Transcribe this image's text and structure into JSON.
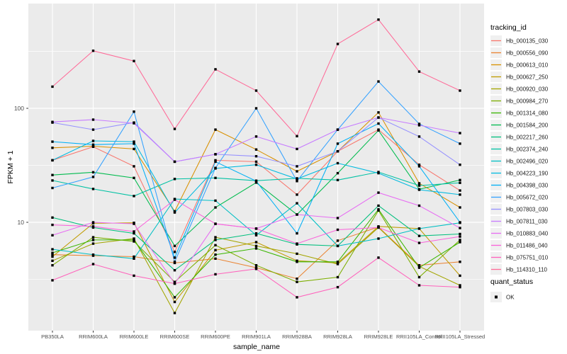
{
  "figure": {
    "background": "#FFFFFF",
    "panel_background": "#EBEBEB",
    "grid_color": "#FFFFFF",
    "marker_color": "#000000",
    "axis_text_color": "#4D4D4D"
  },
  "axes": {
    "x_title": "sample_name",
    "y_title": "FPKM + 1",
    "y_tick_labels": [
      "100",
      "10"
    ]
  },
  "legend": {
    "tracking_title": "tracking_id",
    "quant_title": "quant_status",
    "quant_items": [
      {
        "label": "OK",
        "marker": "black-square-icon"
      }
    ]
  },
  "chart_data": {
    "type": "line",
    "title": "",
    "xlabel": "sample_name",
    "ylabel": "FPKM + 1",
    "y_scale": "log10",
    "ylim": [
      1.12,
      830
    ],
    "y_major_ticks": [
      100,
      10
    ],
    "y_minor_gridlines": [
      316.2,
      31.6,
      3.16
    ],
    "grid": true,
    "legend_position": "right",
    "point_marker": "filled-square",
    "categories": [
      "PB350LA",
      "RRIM600LA",
      "RRIM600LE",
      "RRIM600SE",
      "RRIM600PE",
      "RRIM901LA",
      "RRIM928BA",
      "RRIM928LA",
      "RRIM928LE",
      "RRII105LA_Control",
      "RRII105LA_Stressed"
    ],
    "series": [
      {
        "name": "Hb_000135_030",
        "color": "#F8766D",
        "values": [
          35,
          46,
          31,
          5.5,
          35,
          34,
          17.5,
          42,
          65,
          32,
          19
        ]
      },
      {
        "name": "Hb_000556_090",
        "color": "#EA8331",
        "values": [
          5.2,
          5.1,
          5.0,
          4.4,
          4.8,
          4.0,
          3.2,
          6.9,
          9.1,
          4.2,
          4.5
        ]
      },
      {
        "name": "Hb_000613_010",
        "color": "#D89000",
        "values": [
          45,
          46.5,
          44,
          12.5,
          65,
          43.5,
          28,
          42,
          92,
          22,
          13.5
        ]
      },
      {
        "name": "Hb_000627_250",
        "color": "#C09B00",
        "values": [
          5.0,
          9.8,
          9.9,
          2.0,
          5.7,
          6.7,
          4.6,
          4.4,
          9.2,
          8.8,
          3.4
        ]
      },
      {
        "name": "Hb_000920_030",
        "color": "#A3A500",
        "values": [
          4.6,
          6.5,
          7.2,
          1.6,
          7.4,
          6.2,
          5.3,
          4.3,
          9.0,
          4.1,
          2.8
        ]
      },
      {
        "name": "Hb_000984_270",
        "color": "#7CAE00",
        "values": [
          4.2,
          7.4,
          6.8,
          3.0,
          6.3,
          4.2,
          3.0,
          3.3,
          12.7,
          3.3,
          7.0
        ]
      },
      {
        "name": "Hb_001314_080",
        "color": "#39B600",
        "values": [
          5.4,
          7.0,
          7.0,
          2.2,
          5.2,
          5.9,
          4.5,
          4.5,
          13.0,
          4.0,
          6.7
        ]
      },
      {
        "name": "Hb_001584_200",
        "color": "#00BB4E",
        "values": [
          26,
          27.5,
          24.5,
          6.2,
          13.5,
          22.3,
          11.7,
          27,
          64,
          19.5,
          23.5
        ]
      },
      {
        "name": "Hb_002217_260",
        "color": "#00BF7D",
        "values": [
          11,
          9.0,
          8.0,
          3.8,
          7.0,
          8.0,
          6.4,
          6.2,
          14,
          7.6,
          7.9
        ]
      },
      {
        "name": "Hb_002374_240",
        "color": "#00C1A3",
        "values": [
          23.3,
          19.6,
          17.0,
          24.0,
          24.5,
          23.2,
          24.3,
          23.5,
          27.6,
          21,
          22.2
        ]
      },
      {
        "name": "Hb_002496_020",
        "color": "#00BFC4",
        "values": [
          5.8,
          5.2,
          4.8,
          16,
          15.5,
          7.7,
          14.7,
          6.2,
          7.2,
          8.8,
          9.9
        ]
      },
      {
        "name": "Hb_004223_190",
        "color": "#00BAE0",
        "values": [
          35,
          51.8,
          51,
          12.2,
          29.7,
          32,
          24,
          33,
          27,
          19.3,
          17.5
        ]
      },
      {
        "name": "Hb_004398_030",
        "color": "#00B0F6",
        "values": [
          51,
          48,
          49,
          4.9,
          34,
          23,
          8.0,
          49,
          73.5,
          31,
          10
        ]
      },
      {
        "name": "Hb_005672_020",
        "color": "#35A2FF",
        "values": [
          20,
          25,
          93.5,
          4.5,
          30,
          100,
          23,
          65,
          172,
          73,
          49
        ]
      },
      {
        "name": "Hb_007803_030",
        "color": "#9590FF",
        "values": [
          75,
          65,
          75,
          34,
          39.5,
          38,
          31,
          42,
          83,
          56.5,
          32
        ]
      },
      {
        "name": "Hb_007811_030",
        "color": "#C77CFF",
        "values": [
          76,
          79.5,
          74,
          34,
          39.5,
          56.6,
          44,
          65,
          83,
          71,
          60.6
        ]
      },
      {
        "name": "Hb_010883_040",
        "color": "#E76BF3",
        "values": [
          7.7,
          10,
          9.7,
          2.9,
          9.7,
          8.8,
          11.7,
          10.9,
          18.2,
          14,
          8.9
        ]
      },
      {
        "name": "Hb_011486_040",
        "color": "#FA62DB",
        "values": [
          9.5,
          9.2,
          8.3,
          15.8,
          9.7,
          8.8,
          6.5,
          8.6,
          9.0,
          6.6,
          7.5
        ]
      },
      {
        "name": "Hb_075751_010",
        "color": "#FF62BC",
        "values": [
          3.1,
          4.3,
          3.4,
          2.9,
          3.5,
          3.9,
          2.2,
          2.7,
          4.9,
          2.8,
          2.7
        ]
      },
      {
        "name": "Hb_114310_110",
        "color": "#FF6A98",
        "values": [
          155,
          320,
          260,
          66,
          220,
          143,
          57,
          367,
          600,
          210,
          143
        ]
      }
    ]
  }
}
